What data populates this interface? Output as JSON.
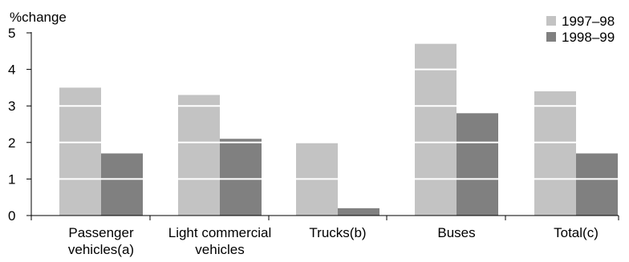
{
  "chart_data": {
    "type": "bar",
    "ylabel": "%change",
    "ylim": [
      0,
      5
    ],
    "yticks": [
      0,
      1,
      2,
      3,
      4,
      5
    ],
    "grid": "horizontal white lines drawn over bars",
    "legend_position": "top-right",
    "categories": [
      [
        "Passenger",
        "vehicles(a)"
      ],
      [
        "Light commercial",
        "vehicles"
      ],
      [
        "Trucks(b)"
      ],
      [
        "Buses"
      ],
      [
        "Total(c)"
      ]
    ],
    "series": [
      {
        "name": "1997–98",
        "color": "#c3c3c3",
        "values": [
          3.5,
          3.3,
          2.0,
          4.7,
          3.4
        ]
      },
      {
        "name": "1998–99",
        "color": "#808080",
        "values": [
          1.7,
          2.1,
          0.2,
          2.8,
          1.7
        ]
      }
    ]
  }
}
